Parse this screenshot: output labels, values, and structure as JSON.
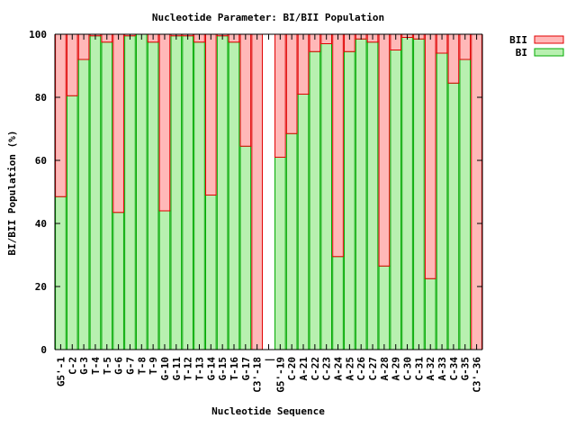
{
  "chart_data": {
    "type": "bar",
    "stacked": true,
    "title": "Nucleotide Parameter: BI/BII Population",
    "xlabel": "Nucleotide Sequence",
    "ylabel": "BI/BII Population (%)",
    "ylim": [
      0,
      100
    ],
    "yticks": [
      0,
      20,
      40,
      60,
      80,
      100
    ],
    "legend_position": "top-right, outside plot",
    "grid": false,
    "colors": {
      "BI_fill": "#b8f0b0",
      "BI_stroke": "#00aa00",
      "BII_fill": "#ffb8b8",
      "BII_stroke": "#e00000",
      "axis": "#000000"
    },
    "categories": [
      "G5'-1",
      "C-2",
      "G-3",
      "T-4",
      "T-5",
      "G-6",
      "G-7",
      "T-8",
      "T-9",
      "G-10",
      "G-11",
      "T-12",
      "T-13",
      "G-14",
      "G-15",
      "T-16",
      "G-17",
      "C3'-18",
      "|",
      "G5'-19",
      "C-20",
      "A-21",
      "C-22",
      "C-23",
      "A-24",
      "A-25",
      "C-26",
      "C-27",
      "A-28",
      "A-29",
      "C-30",
      "C-31",
      "A-32",
      "A-33",
      "C-34",
      "G-35",
      "C3'-36"
    ],
    "series": [
      {
        "name": "BI",
        "values": [
          48.5,
          80.5,
          92,
          99.5,
          97.5,
          43.5,
          99.5,
          100,
          97.5,
          44,
          99.5,
          99.5,
          97.5,
          49,
          99.5,
          97.5,
          64.5,
          0,
          null,
          61,
          68.5,
          81,
          94.5,
          97,
          29.5,
          94.5,
          98.5,
          97.5,
          26.5,
          95,
          99,
          98.5,
          22.5,
          94,
          84.5,
          92,
          0
        ]
      },
      {
        "name": "BII",
        "values": [
          51.5,
          19.5,
          8,
          0.5,
          2.5,
          56.5,
          0.5,
          0,
          2.5,
          56,
          0.5,
          0.5,
          2.5,
          51,
          0.5,
          2.5,
          35.5,
          100,
          null,
          39,
          31.5,
          19,
          5.5,
          3,
          70.5,
          5.5,
          1.5,
          2.5,
          73.5,
          5,
          1,
          1.5,
          77.5,
          6,
          15.5,
          8,
          100
        ]
      }
    ]
  }
}
